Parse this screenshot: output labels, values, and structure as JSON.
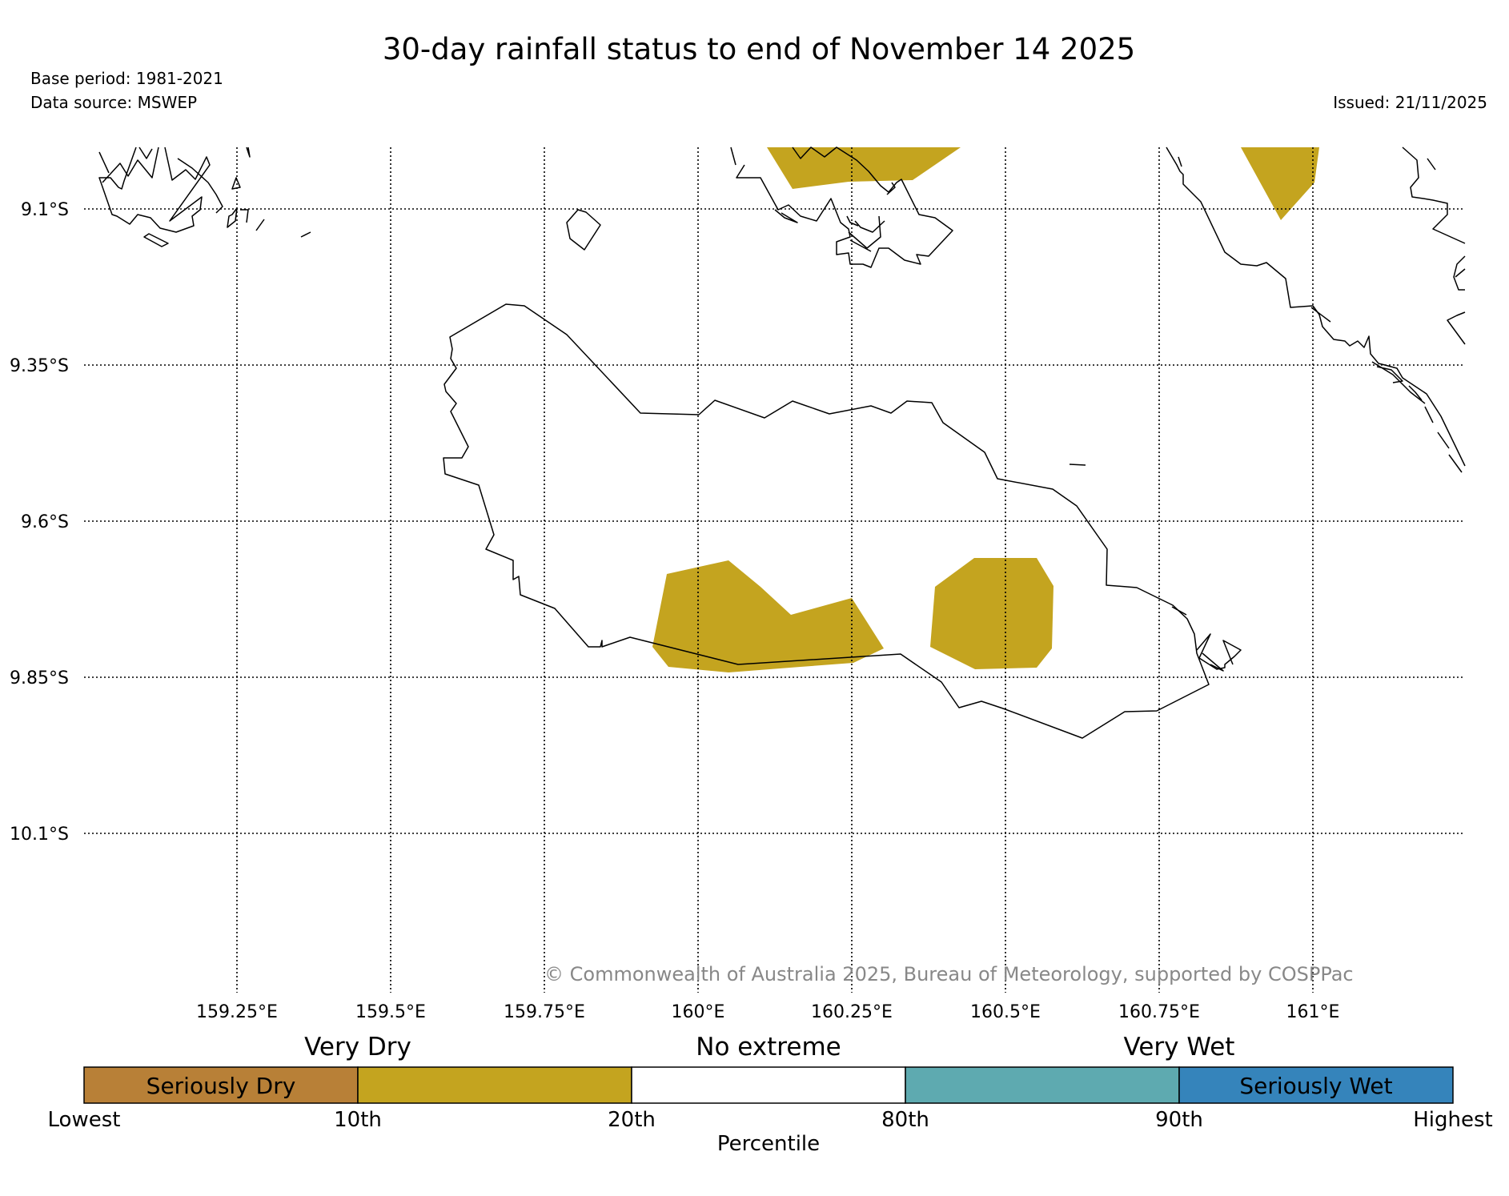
{
  "header": {
    "title": "30-day rainfall status to end of November 14 2025",
    "base_period": "Base period: 1981-2021",
    "data_source": "Data source: MSWEP",
    "issued": "Issued: 21/11/2025"
  },
  "map": {
    "lat_labels": [
      "9.1°S",
      "9.35°S",
      "9.6°S",
      "9.85°S",
      "10.1°S"
    ],
    "lon_labels": [
      "159.25°E",
      "159.5°E",
      "159.75°E",
      "160°E",
      "160.25°E",
      "160.5°E",
      "160.75°E",
      "161°E"
    ],
    "copyright": "© Commonwealth of Australia 2025, Bureau of Meteorology, supported by COSPPac",
    "colors": {
      "very_dry": "#c4a41f",
      "coastline": "#000000",
      "watermark": "#888888"
    }
  },
  "legend": {
    "group_labels": [
      "Very Dry",
      "No extreme",
      "Very Wet"
    ],
    "boxes": [
      {
        "label": "Seriously Dry",
        "color": "#b88037"
      },
      {
        "label": "",
        "color": "#c4a41f"
      },
      {
        "label": "",
        "color": "#ffffff"
      },
      {
        "label": "",
        "color": "#5eaab0"
      },
      {
        "label": "Seriously Wet",
        "color": "#3584bb"
      }
    ],
    "tick_labels": [
      "Lowest",
      "10th",
      "20th",
      "80th",
      "90th",
      "Highest"
    ],
    "axis_label": "Percentile"
  }
}
